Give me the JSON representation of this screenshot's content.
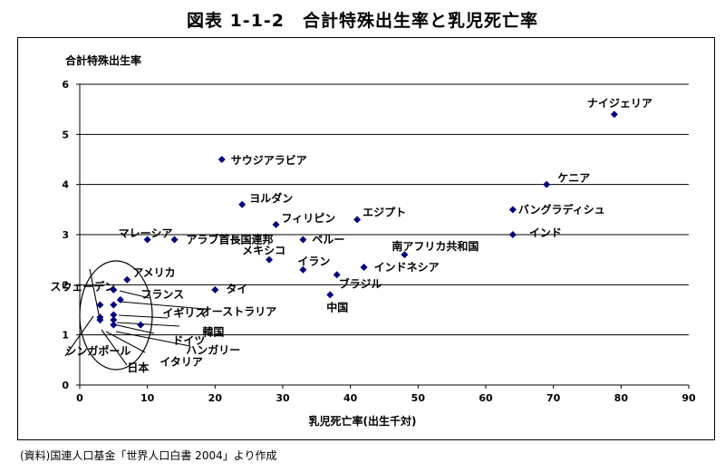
{
  "page": {
    "title": "図表 1-1-2　合計特殊出生率と乳児死亡率",
    "source": "(資料)国連人口基金「世界人口白書 2004」より作成"
  },
  "chart_data": {
    "type": "scatter",
    "xlabel": "乳児死亡率(出生千対)",
    "ylabel": "合計特殊出生率",
    "xlim": [
      0,
      90
    ],
    "ylim": [
      0,
      6
    ],
    "xticks": [
      "0",
      "10",
      "20",
      "30",
      "40",
      "50",
      "60",
      "70",
      "80",
      "90"
    ],
    "yticks": [
      "0",
      "1",
      "2",
      "3",
      "4",
      "5",
      "6"
    ],
    "grid": "horizontal",
    "marker_color": "#00007f",
    "points": [
      {
        "label": "ナイジェリア",
        "x": 79,
        "y": 5.4
      },
      {
        "label": "サウジアラビア",
        "x": 21,
        "y": 4.5
      },
      {
        "label": "ケニア",
        "x": 69,
        "y": 4.0
      },
      {
        "label": "ヨルダン",
        "x": 24,
        "y": 3.6
      },
      {
        "label": "バングラディシュ",
        "x": 64,
        "y": 3.5
      },
      {
        "label": "エジプト",
        "x": 41,
        "y": 3.3
      },
      {
        "label": "フィリピン",
        "x": 29,
        "y": 3.2
      },
      {
        "label": "インド",
        "x": 64,
        "y": 3.0
      },
      {
        "label": "マレーシア",
        "x": 10,
        "y": 2.9
      },
      {
        "label": "アラブ首長国連邦",
        "x": 14,
        "y": 2.9
      },
      {
        "label": "ペルー",
        "x": 33,
        "y": 2.9
      },
      {
        "label": "南アフリカ共和国",
        "x": 48,
        "y": 2.6
      },
      {
        "label": "メキシコ",
        "x": 28,
        "y": 2.5
      },
      {
        "label": "イラン",
        "x": 33,
        "y": 2.3
      },
      {
        "label": "インドネシア",
        "x": 42,
        "y": 2.35
      },
      {
        "label": "ブラジル",
        "x": 38,
        "y": 2.2
      },
      {
        "label": "アメリカ",
        "x": 7,
        "y": 2.1
      },
      {
        "label": "タイ",
        "x": 20,
        "y": 1.9
      },
      {
        "label": "中国",
        "x": 37,
        "y": 1.8
      },
      {
        "label": "スウェーデン",
        "x": 3,
        "y": 1.6
      },
      {
        "label": "フランス",
        "x": 5,
        "y": 1.9
      },
      {
        "label": "オーストラリア",
        "x": 6,
        "y": 1.7
      },
      {
        "label": "イギリス",
        "x": 5,
        "y": 1.6
      },
      {
        "label": "韓国",
        "x": 5,
        "y": 1.4
      },
      {
        "label": "ドイツ",
        "x": 5,
        "y": 1.3
      },
      {
        "label": "ハンガリー",
        "x": 9,
        "y": 1.2
      },
      {
        "label": "シンガポール",
        "x": 3,
        "y": 1.35
      },
      {
        "label": "日本",
        "x": 3,
        "y": 1.3
      },
      {
        "label": "イタリア",
        "x": 5,
        "y": 1.2
      }
    ]
  }
}
